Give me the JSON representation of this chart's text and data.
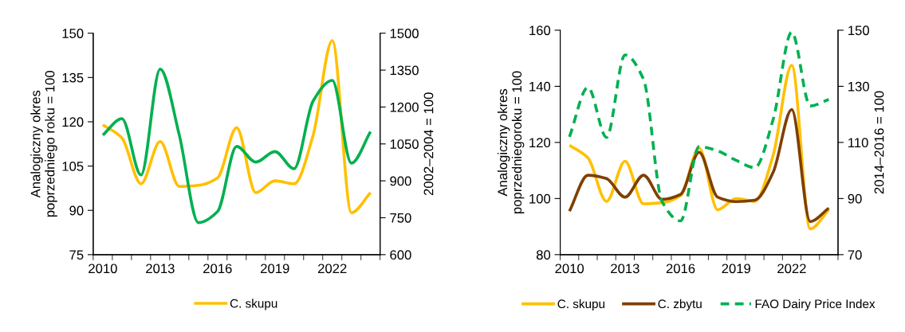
{
  "chart_data": [
    {
      "type": "line",
      "ylabel": "Analogiczny okres\npoprzedniego roku = 100",
      "y2label": "2002–2004 = 100",
      "categories": [
        "2010",
        null,
        null,
        "2013",
        null,
        null,
        "2016",
        null,
        null,
        "2019",
        null,
        null,
        "2022",
        null,
        null
      ],
      "ylim": [
        75,
        150
      ],
      "yticks": [
        75,
        90,
        105,
        120,
        135,
        150
      ],
      "y2lim": [
        600,
        1500
      ],
      "y2ticks": [
        600,
        750,
        900,
        1050,
        1200,
        1350,
        1500
      ],
      "grid": false,
      "legend": "bottom",
      "line_style": "solid",
      "series": [
        {
          "name": "C. skupu",
          "color": "#ffc000",
          "values": [
            119,
            114.5,
            99,
            113.3,
            98.1,
            98.5,
            101,
            118,
            96,
            100,
            99,
            115.5,
            147.5,
            89.2,
            96
          ]
        },
        {
          "color": "#00b050",
          "axis": "y2",
          "values": [
            1086,
            1153,
            924,
            1354,
            1086,
            730,
            775,
            1040,
            976,
            1019,
            949,
            1225,
            1308,
            972,
            1100
          ]
        }
      ]
    },
    {
      "type": "line",
      "ylabel": "Analogiczny okres\npoprzedniegoroku = 100",
      "y2label": "2014–2016 = 100",
      "categories": [
        "2010",
        null,
        null,
        "2013",
        null,
        null,
        "2016",
        null,
        null,
        "2019",
        null,
        null,
        "2022",
        null,
        null
      ],
      "ylim": [
        80,
        160
      ],
      "yticks": [
        80,
        100,
        120,
        140,
        160
      ],
      "y2lim": [
        70,
        150
      ],
      "y2ticks": [
        70,
        90,
        110,
        130,
        150
      ],
      "grid": false,
      "legend": "bottom",
      "line_style": "solid",
      "series": [
        {
          "name": "C. skupu",
          "color": "#ffc000",
          "values": [
            119,
            114.5,
            99,
            113.3,
            98.1,
            98.5,
            101,
            118,
            96,
            100,
            99,
            115.5,
            147.5,
            89.2,
            96
          ]
        },
        {
          "name": "C. zbytu",
          "color": "#7f3f00",
          "values": [
            95.5,
            108.3,
            107.1,
            100.5,
            108.3,
            99.7,
            101.5,
            116.5,
            100.5,
            98.9,
            99.4,
            109.4,
            131.7,
            91.8,
            96.6
          ]
        },
        {
          "name": "FAO Dairy Price Index",
          "color": "#00b050",
          "axis": "y2",
          "line_style": "dashed",
          "values": [
            112,
            129.6,
            111.8,
            141.2,
            132.5,
            88.9,
            82,
            108.5,
            107,
            103.6,
            101,
            118.3,
            149.3,
            123,
            125.3
          ]
        }
      ]
    }
  ]
}
